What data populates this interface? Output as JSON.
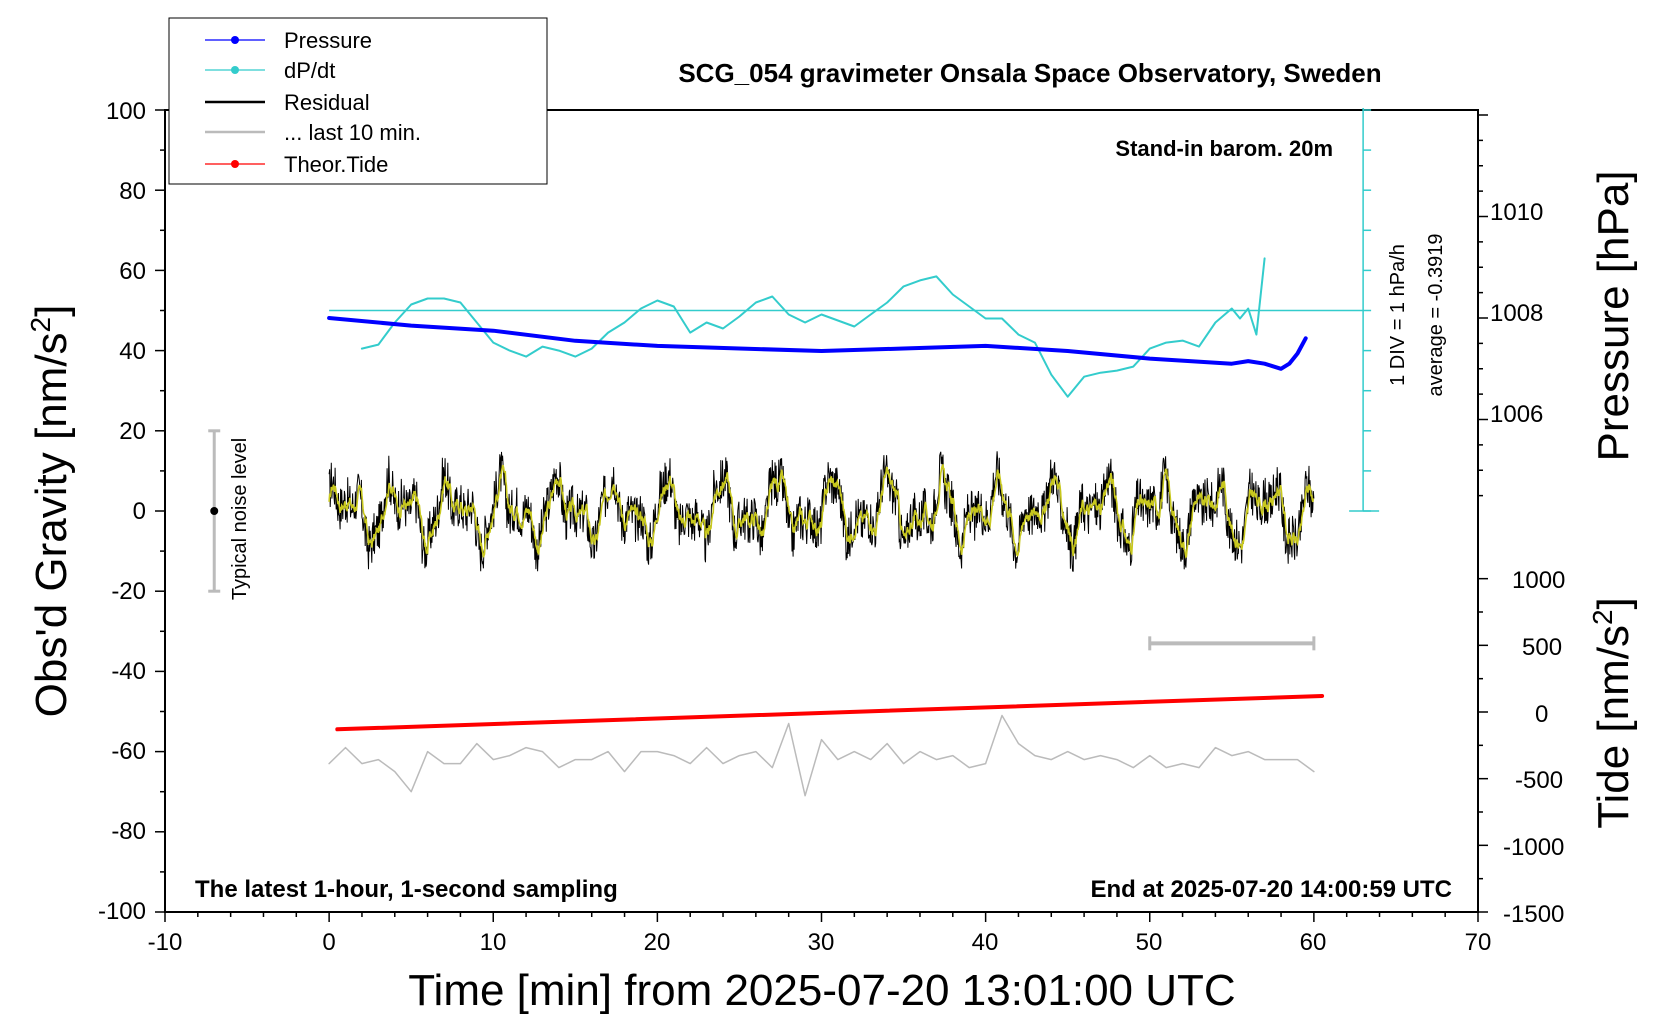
{
  "chart_data": {
    "type": "line",
    "title": "SCG_054 gravimeter Onsala Space Observatory, Sweden",
    "xlabel": "Time [min] from 2025-07-20 13:01:00 UTC",
    "ylabel_left": "Obs'd Gravity [nm/s",
    "ylabel_left_sup": "2",
    "ylabel_left_close": "]",
    "ylabel_right_top": "Pressure [hPa]",
    "ylabel_right_bottom": "Tide [nm/s",
    "ylabel_right_bottom_sup": "2",
    "ylabel_right_bottom_close": "]",
    "xlim": [
      -10,
      70
    ],
    "ylim": [
      -100,
      100
    ],
    "xticks": [
      "-10",
      "0",
      "10",
      "20",
      "30",
      "40",
      "50",
      "60",
      "70"
    ],
    "yticks": [
      "100",
      "80",
      "60",
      "40",
      "20",
      "0",
      "-20",
      "-40",
      "-60",
      "-80",
      "-100"
    ],
    "pressure_axis": {
      "range": [
        1004,
        1012
      ],
      "ticks": [
        "1010",
        "1008",
        "1006"
      ]
    },
    "tide_axis": {
      "range": [
        -1500,
        1500
      ],
      "ticks": [
        "1000",
        "500",
        "0",
        "-500",
        "-1000",
        "-1500"
      ]
    },
    "legend": {
      "position": "top-left",
      "entries": [
        {
          "label": "Pressure",
          "color": "#0000ff",
          "marker": true
        },
        {
          "label": "dP/dt",
          "color": "#33cccc",
          "marker": true
        },
        {
          "label": "Residual",
          "color": "#000000",
          "marker": false
        },
        {
          "label": "... last 10 min.",
          "color": "#bbbbbb",
          "marker": false
        },
        {
          "label": "Theor.Tide",
          "color": "#ff0000",
          "marker": true
        }
      ]
    },
    "annotations": {
      "barometer": "Stand-in barom. 20m",
      "latest": "The latest 1-hour, 1-second sampling",
      "end": "End at 2025-07-20 14:00:59 UTC",
      "dpdt_div": "1 DIV = 1 hPa/h",
      "dpdt_average": "average = -0.3919",
      "noise": "Typical noise level"
    },
    "noise_bar": {
      "x": -7,
      "center": 0,
      "half_range": 20
    },
    "last10_bar": {
      "x_range": [
        50,
        60
      ],
      "y": -33
    },
    "series": [
      {
        "name": "Pressure",
        "axis": "pressure",
        "color": "#0000ff",
        "x": [
          0,
          5,
          10,
          15,
          20,
          25,
          30,
          35,
          40,
          45,
          50,
          55,
          56,
          57,
          58,
          58.5,
          59,
          59.5
        ],
        "values": [
          1008.0,
          1007.85,
          1007.75,
          1007.55,
          1007.45,
          1007.4,
          1007.35,
          1007.4,
          1007.45,
          1007.35,
          1007.2,
          1007.1,
          1007.15,
          1007.1,
          1007.0,
          1007.1,
          1007.3,
          1007.6
        ]
      },
      {
        "name": "dP/dt",
        "axis": "gravity",
        "color": "#33cccc",
        "x": [
          2,
          3,
          4,
          5,
          6,
          7,
          8,
          9,
          10,
          11,
          12,
          13,
          14,
          15,
          16,
          17,
          18,
          19,
          20,
          21,
          22,
          23,
          24,
          25,
          26,
          27,
          28,
          29,
          30,
          31,
          32,
          33,
          34,
          35,
          36,
          37,
          38,
          39,
          40,
          41,
          42,
          43,
          44,
          45,
          46,
          47,
          48,
          49,
          50,
          51,
          52,
          53,
          54,
          55,
          55.5,
          56,
          56.5,
          57
        ],
        "values": [
          40.5,
          41.5,
          47,
          51.5,
          53,
          53,
          52,
          47,
          42,
          40,
          38.5,
          41,
          40,
          38.5,
          40.5,
          44.5,
          47,
          50.5,
          52.5,
          51,
          44.5,
          47,
          45.5,
          48.5,
          52,
          53.5,
          49,
          47,
          49,
          47.5,
          46,
          49,
          52,
          56,
          57.5,
          58.5,
          54,
          51,
          48,
          48,
          44,
          42,
          34,
          28.5,
          33.5,
          34.5,
          35,
          36,
          40.5,
          42,
          42.5,
          41,
          47,
          50.5,
          48,
          50.5,
          44,
          63
        ]
      },
      {
        "name": "Residual",
        "axis": "gravity",
        "color": "#000000",
        "x_range": [
          0,
          60
        ],
        "envelope": [
          -15,
          15
        ]
      },
      {
        "name": "... last 10 min.",
        "axis": "gravity",
        "color": "#bbbbbb",
        "x": [
          0,
          1,
          2,
          3,
          4,
          5,
          6,
          7,
          8,
          9,
          10,
          11,
          12,
          13,
          14,
          15,
          16,
          17,
          18,
          19,
          20,
          21,
          22,
          23,
          24,
          25,
          26,
          27,
          28,
          29,
          30,
          31,
          32,
          33,
          34,
          35,
          36,
          37,
          38,
          39,
          40,
          41,
          42,
          43,
          44,
          45,
          46,
          47,
          48,
          49,
          50,
          51,
          52,
          53,
          54,
          55,
          56,
          57,
          58,
          59,
          60
        ],
        "values": [
          -63,
          -59,
          -63,
          -62,
          -65,
          -70,
          -60,
          -63,
          -63,
          -58,
          -62,
          -61,
          -59,
          -60,
          -64,
          -62,
          -62,
          -60,
          -65,
          -60,
          -60,
          -61,
          -63,
          -59,
          -63,
          -61,
          -60,
          -64,
          -53,
          -71,
          -57,
          -62,
          -60,
          -62,
          -58,
          -63,
          -60,
          -62,
          -61,
          -64,
          -63,
          -51,
          -58,
          -61,
          -62,
          -60,
          -62,
          -61,
          -62,
          -64,
          -61,
          -64,
          -63,
          -64,
          -59,
          -61,
          -60,
          -62,
          -62,
          -62,
          -65
        ]
      },
      {
        "name": "Theor.Tide",
        "axis": "tide",
        "color": "#ff0000",
        "x": [
          0.5,
          60.5
        ],
        "values": [
          -130,
          120
        ]
      }
    ]
  }
}
